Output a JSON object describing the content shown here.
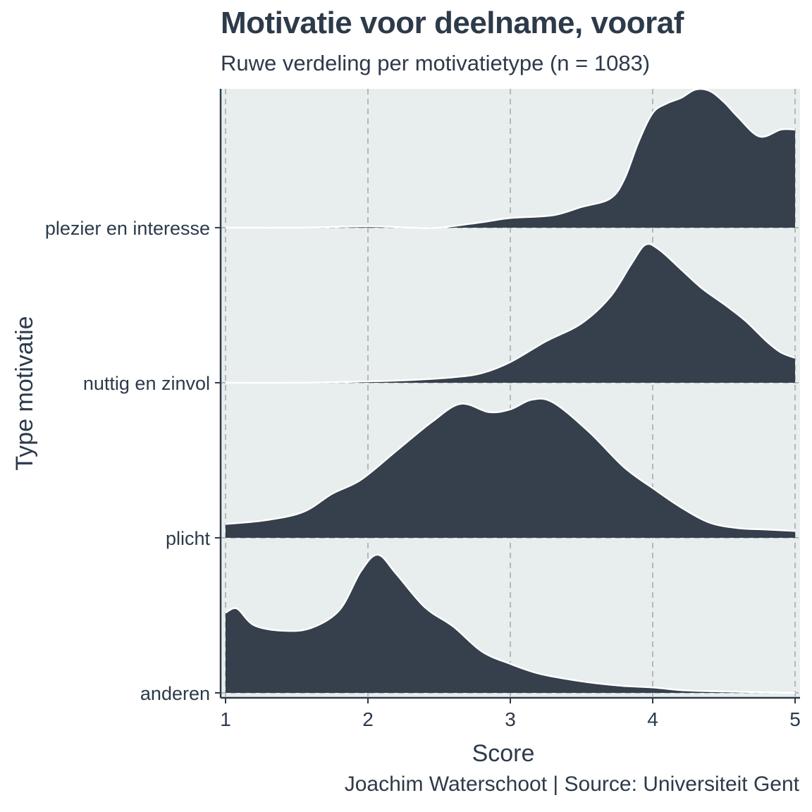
{
  "chart_data": {
    "type": "area",
    "subtype": "ridgeline-density",
    "title": "Motivatie voor deelname, vooraf",
    "subtitle": "Ruwe verdeling per motivatietype (n = 1083)",
    "caption": "Joachim Waterschoot | Source: Universiteit Gent",
    "xlabel": "Score",
    "ylabel": "Type motivatie",
    "xlim": [
      1,
      5
    ],
    "x_ticks": [
      1,
      2,
      3,
      4,
      5
    ],
    "grid": "dashed vertical",
    "colors": {
      "fill": "#363f4c",
      "outline": "#ffffff",
      "panel": "#e8eded",
      "grid": "#b4b8b8"
    },
    "categories": [
      "plezier en interesse",
      "nuttig en zinvol",
      "plicht",
      "anderen"
    ],
    "series": [
      {
        "name": "plezier en interesse",
        "points": [
          [
            1.0,
            0.0
          ],
          [
            1.5,
            0.0
          ],
          [
            2.0,
            0.01
          ],
          [
            2.3,
            0.0
          ],
          [
            2.5,
            0.0
          ],
          [
            2.8,
            0.04
          ],
          [
            3.0,
            0.07
          ],
          [
            3.3,
            0.09
          ],
          [
            3.5,
            0.15
          ],
          [
            3.7,
            0.21
          ],
          [
            3.8,
            0.35
          ],
          [
            3.9,
            0.62
          ],
          [
            4.0,
            0.83
          ],
          [
            4.1,
            0.9
          ],
          [
            4.2,
            0.94
          ],
          [
            4.3,
            1.0
          ],
          [
            4.4,
            0.99
          ],
          [
            4.5,
            0.91
          ],
          [
            4.6,
            0.8
          ],
          [
            4.75,
            0.66
          ],
          [
            4.9,
            0.71
          ],
          [
            5.0,
            0.71
          ]
        ]
      },
      {
        "name": "nuttig en zinvol",
        "points": [
          [
            1.0,
            0.0
          ],
          [
            1.5,
            0.0
          ],
          [
            2.0,
            0.01
          ],
          [
            2.3,
            0.02
          ],
          [
            2.6,
            0.04
          ],
          [
            2.8,
            0.07
          ],
          [
            3.0,
            0.15
          ],
          [
            3.25,
            0.3
          ],
          [
            3.5,
            0.43
          ],
          [
            3.7,
            0.62
          ],
          [
            3.85,
            0.86
          ],
          [
            3.95,
            1.0
          ],
          [
            4.05,
            0.96
          ],
          [
            4.2,
            0.82
          ],
          [
            4.35,
            0.68
          ],
          [
            4.5,
            0.57
          ],
          [
            4.65,
            0.45
          ],
          [
            4.8,
            0.3
          ],
          [
            4.9,
            0.22
          ],
          [
            5.0,
            0.18
          ]
        ]
      },
      {
        "name": "plicht",
        "points": [
          [
            1.0,
            0.1
          ],
          [
            1.3,
            0.13
          ],
          [
            1.55,
            0.19
          ],
          [
            1.75,
            0.32
          ],
          [
            1.95,
            0.42
          ],
          [
            2.2,
            0.63
          ],
          [
            2.45,
            0.84
          ],
          [
            2.65,
            0.97
          ],
          [
            2.85,
            0.91
          ],
          [
            3.0,
            0.93
          ],
          [
            3.15,
            1.0
          ],
          [
            3.3,
            0.98
          ],
          [
            3.55,
            0.77
          ],
          [
            3.8,
            0.51
          ],
          [
            4.0,
            0.36
          ],
          [
            4.2,
            0.22
          ],
          [
            4.4,
            0.11
          ],
          [
            4.6,
            0.07
          ],
          [
            4.8,
            0.06
          ],
          [
            5.0,
            0.05
          ]
        ]
      },
      {
        "name": "anderen",
        "points": [
          [
            1.0,
            0.58
          ],
          [
            1.08,
            0.61
          ],
          [
            1.2,
            0.49
          ],
          [
            1.4,
            0.45
          ],
          [
            1.6,
            0.47
          ],
          [
            1.8,
            0.6
          ],
          [
            1.95,
            0.88
          ],
          [
            2.07,
            1.0
          ],
          [
            2.2,
            0.86
          ],
          [
            2.4,
            0.62
          ],
          [
            2.6,
            0.48
          ],
          [
            2.8,
            0.3
          ],
          [
            3.0,
            0.21
          ],
          [
            3.2,
            0.14
          ],
          [
            3.4,
            0.1
          ],
          [
            3.6,
            0.07
          ],
          [
            3.8,
            0.05
          ],
          [
            4.0,
            0.04
          ],
          [
            4.2,
            0.02
          ],
          [
            4.5,
            0.01
          ],
          [
            5.0,
            0.0
          ]
        ]
      }
    ]
  }
}
